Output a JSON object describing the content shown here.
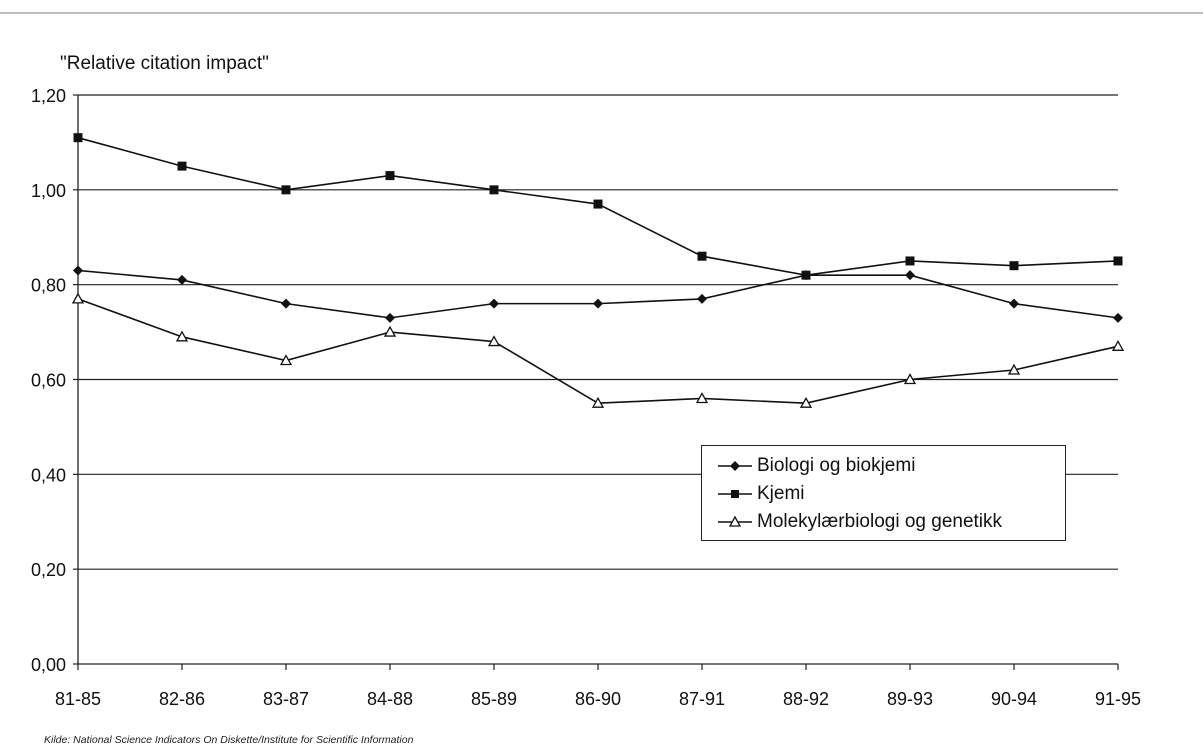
{
  "chart_data": {
    "type": "line",
    "title": "\"Relative citation impact\"",
    "xlabel": "",
    "ylabel": "",
    "categories": [
      "81-85",
      "82-86",
      "83-87",
      "84-88",
      "85-89",
      "86-90",
      "87-91",
      "88-92",
      "89-93",
      "90-94",
      "91-95"
    ],
    "y_ticks": [
      "0,00",
      "0,20",
      "0,40",
      "0,60",
      "0,80",
      "1,00",
      "1,20"
    ],
    "ylim": [
      0,
      1.2
    ],
    "grid": "horizontal",
    "legend_position": "center-right",
    "series": [
      {
        "name": "Biologi og biokjemi",
        "marker": "diamond-filled",
        "values": [
          0.83,
          0.81,
          0.76,
          0.73,
          0.76,
          0.76,
          0.77,
          0.82,
          0.82,
          0.76,
          0.73
        ]
      },
      {
        "name": "Kjemi",
        "marker": "square-filled",
        "values": [
          1.11,
          1.05,
          1.0,
          1.03,
          1.0,
          0.97,
          0.86,
          0.82,
          0.85,
          0.84,
          0.85
        ]
      },
      {
        "name": "Molekylærbiologi og genetikk",
        "marker": "triangle-open",
        "values": [
          0.77,
          0.69,
          0.64,
          0.7,
          0.68,
          0.55,
          0.56,
          0.55,
          0.6,
          0.62,
          0.67
        ]
      }
    ]
  },
  "source_note": "Kilde: National Science Indicators On Diskette/Institute for Scientific Information"
}
